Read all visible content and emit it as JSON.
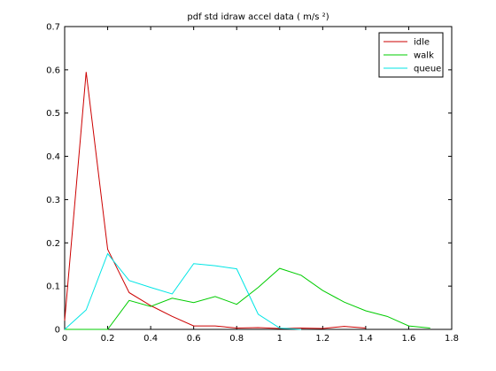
{
  "chart_data": {
    "type": "line",
    "title": "pdf std idraw accel data (      m/s ²)",
    "xlabel": "",
    "ylabel": "",
    "xlim": [
      0,
      1.8
    ],
    "ylim": [
      0,
      0.7
    ],
    "xticks": [
      0,
      0.2,
      0.4,
      0.6,
      0.8,
      1,
      1.2,
      1.4,
      1.6,
      1.8
    ],
    "yticks": [
      0,
      0.1,
      0.2,
      0.3,
      0.4,
      0.5,
      0.6,
      0.7
    ],
    "xtick_labels": [
      "0",
      "0.2",
      "0.4",
      "0.6",
      "0.8",
      "1",
      "1.2",
      "1.4",
      "1.6",
      "1.8"
    ],
    "ytick_labels": [
      "0",
      "0.1",
      "0.2",
      "0.3",
      "0.4",
      "0.5",
      "0.6",
      "0.7"
    ],
    "grid": false,
    "legend_position": "top-right",
    "series": [
      {
        "name": "idle",
        "color": "#cc0000",
        "x": [
          0,
          0.1,
          0.2,
          0.3,
          0.4,
          0.5,
          0.6,
          0.7,
          0.8,
          0.9,
          1.0,
          1.1,
          1.2,
          1.3,
          1.4
        ],
        "y": [
          0.02,
          0.595,
          0.185,
          0.085,
          0.055,
          0.03,
          0.008,
          0.008,
          0.003,
          0.004,
          0.002,
          0.003,
          0.002,
          0.007,
          0.003
        ]
      },
      {
        "name": "walk",
        "color": "#00cc00",
        "x": [
          0,
          0.1,
          0.2,
          0.3,
          0.4,
          0.5,
          0.6,
          0.7,
          0.8,
          0.9,
          1.0,
          1.1,
          1.2,
          1.3,
          1.4,
          1.5,
          1.6,
          1.7
        ],
        "y": [
          0,
          0,
          0,
          0.067,
          0.053,
          0.072,
          0.062,
          0.076,
          0.058,
          0.097,
          0.141,
          0.125,
          0.09,
          0.063,
          0.043,
          0.03,
          0.008,
          0.003
        ]
      },
      {
        "name": "queue",
        "color": "#00e5e5",
        "x": [
          0,
          0.1,
          0.2,
          0.3,
          0.4,
          0.5,
          0.6,
          0.7,
          0.8,
          0.9,
          1.0,
          1.1
        ],
        "y": [
          0,
          0.045,
          0.175,
          0.113,
          0.097,
          0.082,
          0.152,
          0.147,
          0.14,
          0.035,
          0.003,
          0
        ]
      }
    ]
  }
}
